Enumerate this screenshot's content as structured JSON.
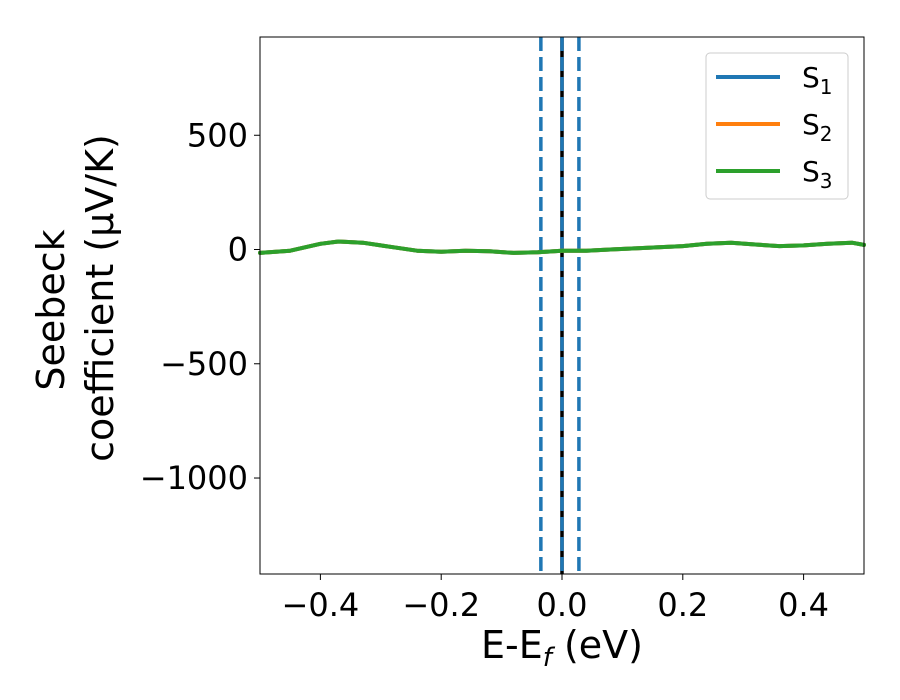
{
  "chart_data": {
    "type": "line",
    "title": "",
    "xlabel": "E-E",
    "xlabel_sub": "f",
    "xlabel_unit": " (eV)",
    "ylabel_line1": "Seebeck",
    "ylabel_line2": "coefficient  (μV/K)",
    "xlim": [
      -0.5,
      0.5
    ],
    "ylim": [
      -1420,
      930
    ],
    "xticks": [
      -0.4,
      -0.2,
      0.0,
      0.2,
      0.4
    ],
    "xtick_labels": [
      "−0.4",
      "−0.2",
      "0.0",
      "0.2",
      "0.4"
    ],
    "yticks": [
      500,
      0,
      -500,
      -1000
    ],
    "ytick_labels": [
      "500",
      "0",
      "−500",
      "−1000"
    ],
    "grid": false,
    "legend_position": "top-right",
    "x": [
      -0.5,
      -0.45,
      -0.4,
      -0.37,
      -0.33,
      -0.28,
      -0.24,
      -0.2,
      -0.16,
      -0.12,
      -0.08,
      -0.04,
      0.0,
      0.04,
      0.08,
      0.12,
      0.16,
      0.2,
      0.24,
      0.28,
      0.32,
      0.36,
      0.4,
      0.44,
      0.48,
      0.5
    ],
    "series": [
      {
        "name": "S",
        "sub": "1",
        "color": "#1f77b4",
        "values": [
          -15,
          -5,
          25,
          35,
          30,
          10,
          -5,
          -10,
          -5,
          -8,
          -15,
          -12,
          -5,
          -5,
          0,
          5,
          10,
          15,
          25,
          30,
          22,
          15,
          18,
          25,
          30,
          20
        ]
      },
      {
        "name": "S",
        "sub": "2",
        "color": "#ff7f0e",
        "values": [
          -15,
          -5,
          25,
          35,
          30,
          10,
          -5,
          -10,
          -5,
          -8,
          -15,
          -12,
          -5,
          -5,
          0,
          5,
          10,
          15,
          25,
          30,
          22,
          15,
          18,
          25,
          30,
          20
        ]
      },
      {
        "name": "S",
        "sub": "3",
        "color": "#2ca02c",
        "values": [
          -15,
          -5,
          25,
          35,
          30,
          10,
          -5,
          -10,
          -5,
          -8,
          -15,
          -12,
          -5,
          -5,
          0,
          5,
          10,
          15,
          25,
          30,
          22,
          15,
          18,
          25,
          30,
          20
        ]
      }
    ],
    "vlines": [
      {
        "x": 0.0,
        "color": "#000000",
        "style": "solid"
      },
      {
        "x": -0.035,
        "color": "#1f77b4",
        "style": "dashed"
      },
      {
        "x": 0.0,
        "color": "#1f77b4",
        "style": "dashed"
      },
      {
        "x": 0.028,
        "color": "#1f77b4",
        "style": "dashed"
      }
    ]
  }
}
